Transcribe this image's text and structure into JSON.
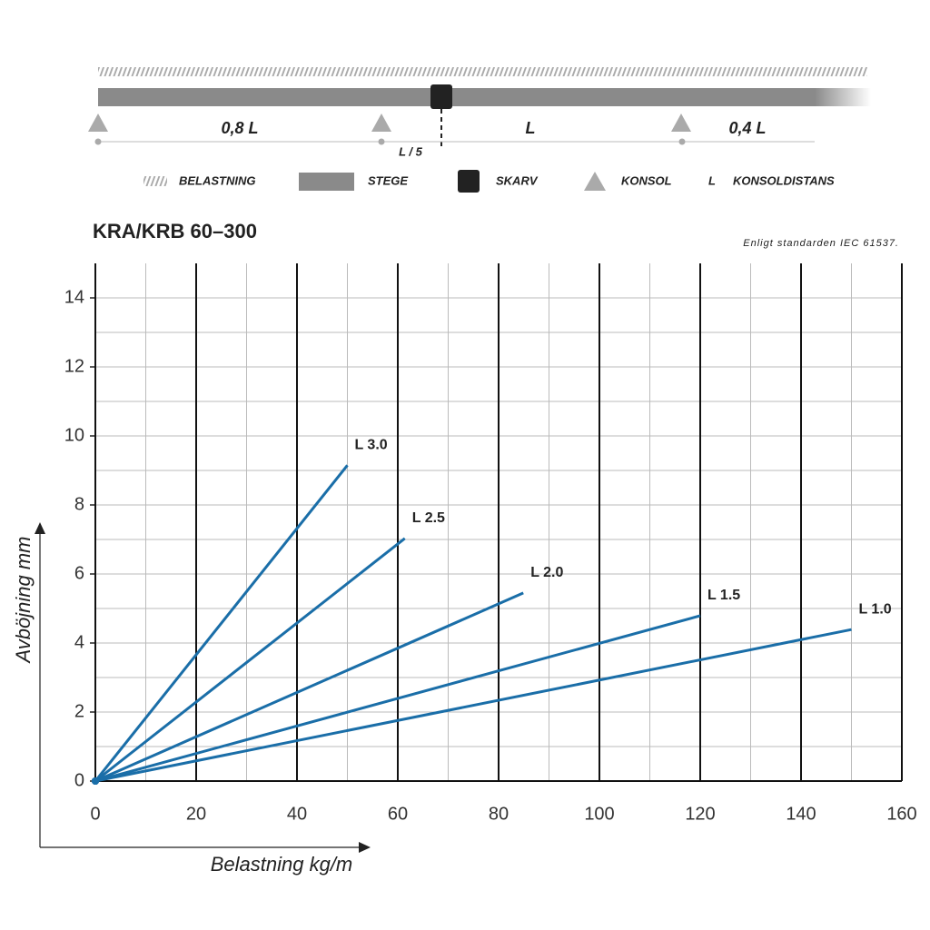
{
  "diagram": {
    "span_labels": [
      "0,8 L",
      "L",
      "0,4 L"
    ],
    "joint_offset": "L / 5",
    "legend": {
      "load": "BELASTNING",
      "tray": "STEGE",
      "joint": "SKARV",
      "bracket": "KONSOL",
      "span_symbol": "L",
      "span": "KONSOLDISTANS"
    }
  },
  "chart_data": {
    "type": "line",
    "title": "KRA/KRB 60–300",
    "subtitle": "Enligt standarden IEC 61537.",
    "x_label": "Belastning kg/m",
    "y_label": "Avböjning mm",
    "xlim": [
      0,
      160
    ],
    "ylim": [
      0,
      15
    ],
    "xticks": [
      0,
      20,
      40,
      60,
      80,
      100,
      120,
      140,
      160
    ],
    "yticks": [
      0,
      2,
      4,
      6,
      8,
      10,
      12,
      14
    ],
    "grid": true,
    "series": [
      {
        "name": "L 3.0",
        "color": "#1a6ea8",
        "x": [
          0,
          50
        ],
        "values": [
          0,
          9.15
        ]
      },
      {
        "name": "L 2.5",
        "color": "#1a6ea8",
        "x": [
          0,
          61.4
        ],
        "values": [
          0,
          7.03
        ]
      },
      {
        "name": "L 2.0",
        "color": "#1a6ea8",
        "x": [
          0,
          84.9
        ],
        "values": [
          0,
          5.45
        ]
      },
      {
        "name": "L 1.5",
        "color": "#1a6ea8",
        "x": [
          0,
          120
        ],
        "values": [
          0,
          4.79
        ]
      },
      {
        "name": "L 1.0",
        "color": "#1a6ea8",
        "x": [
          0,
          150
        ],
        "values": [
          0,
          4.39
        ]
      }
    ]
  }
}
